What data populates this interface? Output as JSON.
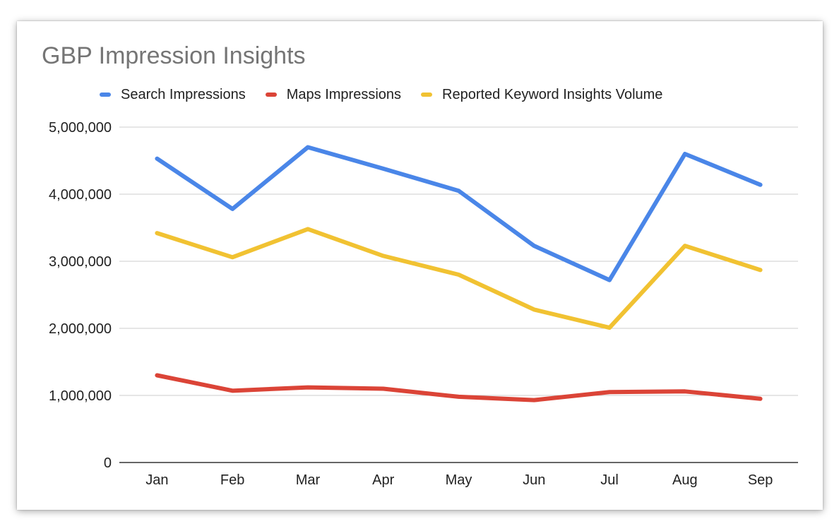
{
  "chart_data": {
    "type": "line",
    "title": "GBP Impression Insights",
    "xlabel": "",
    "ylabel": "",
    "categories": [
      "Jan",
      "Feb",
      "Mar",
      "Apr",
      "May",
      "Jun",
      "Jul",
      "Aug",
      "Sep"
    ],
    "ylim": [
      0,
      5000000
    ],
    "yticks": [
      0,
      1000000,
      2000000,
      3000000,
      4000000,
      5000000
    ],
    "ytick_labels": [
      "0",
      "1,000,000",
      "2,000,000",
      "3,000,000",
      "4,000,000",
      "5,000,000"
    ],
    "grid": true,
    "legend_position": "top",
    "series": [
      {
        "name": "Search Impressions",
        "color": "#4a86e8",
        "values": [
          4530000,
          3780000,
          4700000,
          4380000,
          4050000,
          3230000,
          2720000,
          4600000,
          4140000
        ]
      },
      {
        "name": "Maps Impressions",
        "color": "#db4437",
        "values": [
          1300000,
          1070000,
          1120000,
          1100000,
          980000,
          930000,
          1050000,
          1060000,
          950000
        ]
      },
      {
        "name": "Reported Keyword Insights Volume",
        "color": "#f1c232",
        "values": [
          3420000,
          3060000,
          3480000,
          3080000,
          2800000,
          2280000,
          2010000,
          3230000,
          2870000
        ]
      }
    ]
  }
}
